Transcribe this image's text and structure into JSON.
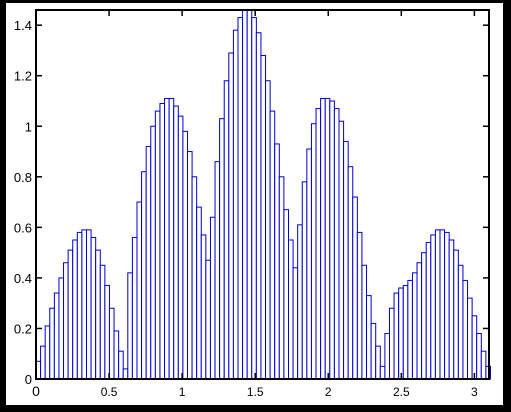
{
  "chart_data": {
    "type": "bar",
    "title": "",
    "xlabel": "",
    "ylabel": "",
    "xlim": [
      0,
      3.1
    ],
    "ylim": [
      0,
      1.46
    ],
    "grid": false,
    "bar_color": "#0000cc",
    "bin_width": 0.0314,
    "x_ticks": [
      {
        "value": 0,
        "label": "0"
      },
      {
        "value": 0.5,
        "label": "0.5"
      },
      {
        "value": 1,
        "label": "1"
      },
      {
        "value": 1.5,
        "label": "1.5"
      },
      {
        "value": 2,
        "label": "2"
      },
      {
        "value": 2.5,
        "label": "2.5"
      },
      {
        "value": 3,
        "label": "3"
      }
    ],
    "y_ticks": [
      {
        "value": 0,
        "label": "0"
      },
      {
        "value": 0.2,
        "label": "0.2"
      },
      {
        "value": 0.4,
        "label": "0.4"
      },
      {
        "value": 0.6,
        "label": "0.6"
      },
      {
        "value": 0.8,
        "label": "0.8"
      },
      {
        "value": 1,
        "label": "1"
      },
      {
        "value": 1.2,
        "label": "1.2"
      },
      {
        "value": 1.4,
        "label": "1.4"
      }
    ],
    "x": [
      0,
      0.0314,
      0.0628,
      0.0942,
      0.1257,
      0.1571,
      0.1885,
      0.2199,
      0.2513,
      0.2827,
      0.3142,
      0.3456,
      0.377,
      0.4084,
      0.4398,
      0.4712,
      0.5027,
      0.5341,
      0.5655,
      0.5969,
      0.6283,
      0.6597,
      0.6912,
      0.7226,
      0.754,
      0.7854,
      0.8168,
      0.8482,
      0.8796,
      0.9111,
      0.9425,
      0.9739,
      1.0053,
      1.0367,
      1.0681,
      1.0996,
      1.131,
      1.1624,
      1.1938,
      1.2252,
      1.2566,
      1.2881,
      1.3195,
      1.3509,
      1.3823,
      1.4137,
      1.4451,
      1.4765,
      1.508,
      1.5394,
      1.5708,
      1.6022,
      1.6336,
      1.665,
      1.6965,
      1.7279,
      1.7593,
      1.7907,
      1.8221,
      1.8535,
      1.885,
      1.9164,
      1.9478,
      1.9792,
      2.0106,
      2.042,
      2.0735,
      2.1049,
      2.1363,
      2.1677,
      2.1991,
      2.2305,
      2.2619,
      2.2934,
      2.3248,
      2.3562,
      2.3876,
      2.419,
      2.4504,
      2.4819,
      2.5133,
      2.5447,
      2.5761,
      2.6075,
      2.6389,
      2.6704,
      2.7018,
      2.7332,
      2.7646,
      2.796,
      2.8274,
      2.8588,
      2.8903,
      2.9217,
      2.9531,
      2.9845,
      3.0159,
      3.0473,
      3.0788
    ],
    "values": [
      0.07,
      0.13,
      0.21,
      0.28,
      0.34,
      0.4,
      0.46,
      0.51,
      0.55,
      0.58,
      0.59,
      0.59,
      0.56,
      0.51,
      0.45,
      0.37,
      0.28,
      0.19,
      0.11,
      0.04,
      0.42,
      0.56,
      0.7,
      0.82,
      0.92,
      1.0,
      1.06,
      1.09,
      1.11,
      1.11,
      1.08,
      1.04,
      0.98,
      0.9,
      0.8,
      0.68,
      0.57,
      0.47,
      0.64,
      0.86,
      1.03,
      1.18,
      1.29,
      1.38,
      1.43,
      1.46,
      1.46,
      1.43,
      1.37,
      1.28,
      1.18,
      1.06,
      0.93,
      0.8,
      0.67,
      0.55,
      0.44,
      0.61,
      0.78,
      0.91,
      1.01,
      1.07,
      1.11,
      1.11,
      1.1,
      1.07,
      1.02,
      0.94,
      0.84,
      0.72,
      0.58,
      0.45,
      0.33,
      0.22,
      0.13,
      0.05,
      0.18,
      0.28,
      0.34,
      0.36,
      0.37,
      0.39,
      0.42,
      0.46,
      0.5,
      0.54,
      0.57,
      0.59,
      0.59,
      0.58,
      0.55,
      0.51,
      0.45,
      0.39,
      0.32,
      0.25,
      0.18,
      0.11,
      0.05
    ]
  }
}
